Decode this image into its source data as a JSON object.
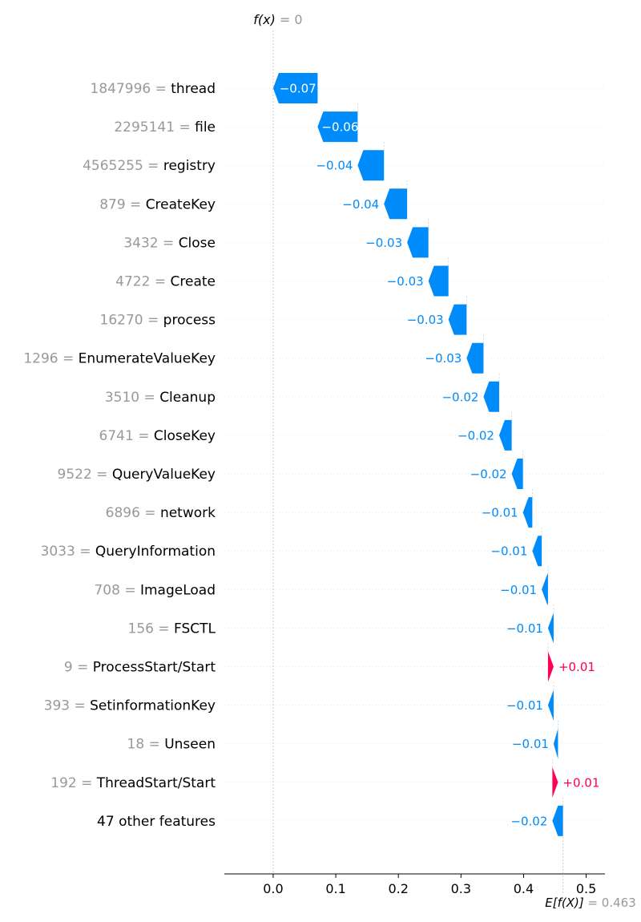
{
  "chart_data": {
    "type": "waterfall",
    "fx": {
      "prefix": "f(x)",
      "equals": " = ",
      "value": "0"
    },
    "expected": {
      "prefix": "E[f(X)]",
      "equals": " = ",
      "value": "0.463"
    },
    "xlim": [
      -0.078,
      0.53
    ],
    "xticks": [
      0.0,
      0.1,
      0.2,
      0.3,
      0.4,
      0.5
    ],
    "xtick_labels": [
      "0.0",
      "0.1",
      "0.2",
      "0.3",
      "0.4",
      "0.5"
    ],
    "grid": true,
    "colors": {
      "negative": "#008bfb",
      "positive": "#ff0051",
      "value_text": "#999999"
    },
    "features": [
      {
        "value": "1847996",
        "name": "thread",
        "contribution": -0.07,
        "start": 0.071,
        "end": 0.0,
        "label": "−0.07"
      },
      {
        "value": "2295141",
        "name": "file",
        "contribution": -0.06,
        "start": 0.135,
        "end": 0.071,
        "label": "−0.06"
      },
      {
        "value": "4565255",
        "name": "registry",
        "contribution": -0.04,
        "start": 0.177,
        "end": 0.135,
        "label": "−0.04"
      },
      {
        "value": "879",
        "name": "CreateKey",
        "contribution": -0.04,
        "start": 0.214,
        "end": 0.177,
        "label": "−0.04"
      },
      {
        "value": "3432",
        "name": "Close",
        "contribution": -0.03,
        "start": 0.248,
        "end": 0.214,
        "label": "−0.03"
      },
      {
        "value": "4722",
        "name": "Create",
        "contribution": -0.03,
        "start": 0.28,
        "end": 0.248,
        "label": "−0.03"
      },
      {
        "value": "16270",
        "name": "process",
        "contribution": -0.03,
        "start": 0.309,
        "end": 0.28,
        "label": "−0.03"
      },
      {
        "value": "1296",
        "name": "EnumerateValueKey",
        "contribution": -0.03,
        "start": 0.336,
        "end": 0.309,
        "label": "−0.03"
      },
      {
        "value": "3510",
        "name": "Cleanup",
        "contribution": -0.02,
        "start": 0.361,
        "end": 0.336,
        "label": "−0.02"
      },
      {
        "value": "6741",
        "name": "CloseKey",
        "contribution": -0.02,
        "start": 0.381,
        "end": 0.361,
        "label": "−0.02"
      },
      {
        "value": "9522",
        "name": "QueryValueKey",
        "contribution": -0.02,
        "start": 0.399,
        "end": 0.381,
        "label": "−0.02"
      },
      {
        "value": "6896",
        "name": "network",
        "contribution": -0.01,
        "start": 0.414,
        "end": 0.399,
        "label": "−0.01"
      },
      {
        "value": "3033",
        "name": "QueryInformation",
        "contribution": -0.01,
        "start": 0.429,
        "end": 0.414,
        "label": "−0.01"
      },
      {
        "value": "708",
        "name": "ImageLoad",
        "contribution": -0.01,
        "start": 0.439,
        "end": 0.429,
        "label": "−0.01"
      },
      {
        "value": "156",
        "name": "FSCTL",
        "contribution": -0.01,
        "start": 0.448,
        "end": 0.439,
        "label": "−0.01"
      },
      {
        "value": "9",
        "name": "ProcessStart/Start",
        "contribution": 0.01,
        "start": 0.439,
        "end": 0.448,
        "label": "+0.01"
      },
      {
        "value": "393",
        "name": "SetinformationKey",
        "contribution": -0.01,
        "start": 0.448,
        "end": 0.439,
        "label": "−0.01"
      },
      {
        "value": "18",
        "name": "Unseen",
        "contribution": -0.01,
        "start": 0.455,
        "end": 0.448,
        "label": "−0.01"
      },
      {
        "value": "192",
        "name": "ThreadStart/Start",
        "contribution": 0.01,
        "start": 0.446,
        "end": 0.455,
        "label": "+0.01"
      },
      {
        "value": "",
        "name": "47 other features",
        "contribution": -0.02,
        "start": 0.463,
        "end": 0.446,
        "label": "−0.02"
      }
    ]
  }
}
